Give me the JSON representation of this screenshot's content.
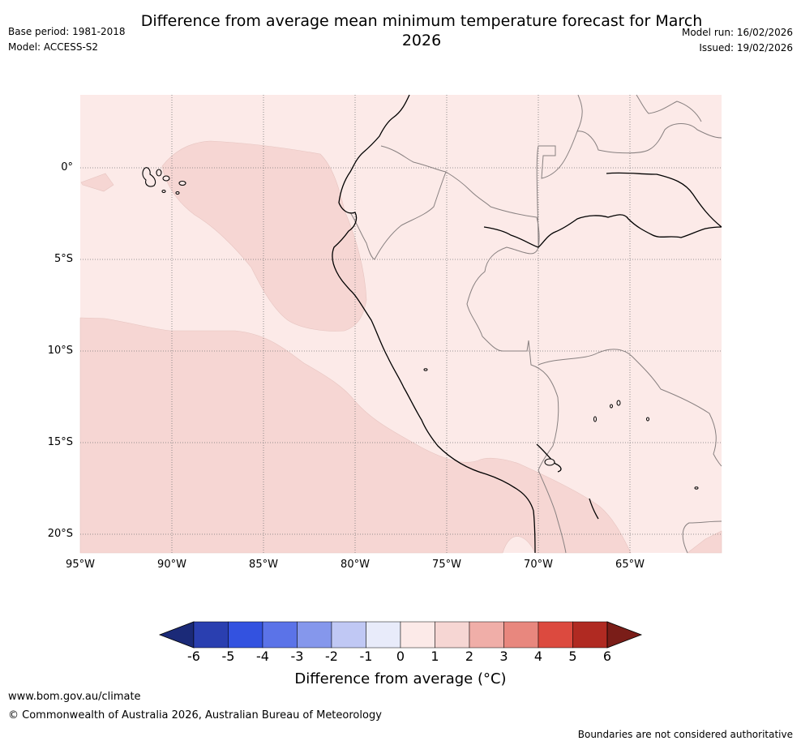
{
  "title": "Difference from average mean minimum temperature forecast for March 2026",
  "meta_left": {
    "base_period": "Base period: 1981-2018",
    "model": "Model: ACCESS-S2"
  },
  "meta_right": {
    "model_run": "Model run: 16/02/2026",
    "issued": "Issued: 19/02/2026"
  },
  "map": {
    "lat_labels": [
      "0°",
      "5°S",
      "10°S",
      "15°S",
      "20°S"
    ],
    "lon_labels": [
      "95°W",
      "90°W",
      "85°W",
      "80°W",
      "75°W",
      "70°W",
      "65°W"
    ],
    "colors": {
      "band_0_1": "#fceae8",
      "band_1_2": "#f6d6d3",
      "coast": "#000000",
      "border": "#888080",
      "grid": "#777777"
    }
  },
  "colorbar": {
    "ticks": [
      "-6",
      "-5",
      "-4",
      "-3",
      "-2",
      "-1",
      "0",
      "1",
      "2",
      "3",
      "4",
      "5",
      "6"
    ],
    "colors": [
      "#1b2a78",
      "#2a3fb0",
      "#3352e0",
      "#5b73e8",
      "#8597ec",
      "#c0c8f4",
      "#e8ebfa",
      "#fceae8",
      "#f6d6d3",
      "#f0aea8",
      "#e8877e",
      "#dc4a3f",
      "#b02a22",
      "#7a1d18"
    ],
    "label": "Difference from average (°C)"
  },
  "footer": {
    "url": "www.bom.gov.au/climate",
    "copyright": "© Commonwealth of Australia 2026, Australian Bureau of Meteorology",
    "note": "Boundaries are not considered authoritative"
  }
}
